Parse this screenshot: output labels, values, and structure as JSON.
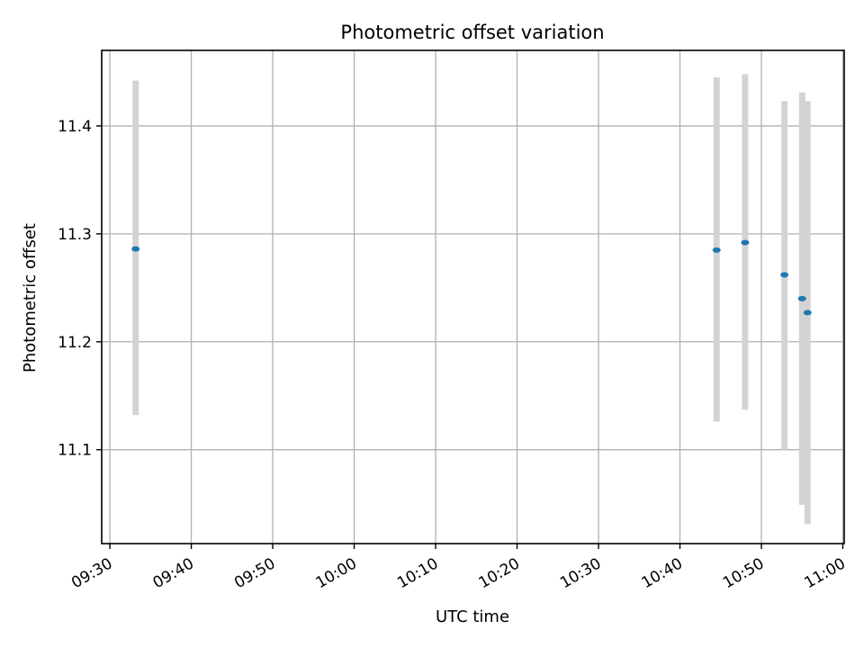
{
  "chart_data": {
    "type": "scatter",
    "title": "Photometric offset variation",
    "xlabel": "UTC time",
    "ylabel": "Photometric offset",
    "x_ticks": [
      "09:30",
      "09:40",
      "09:50",
      "10:00",
      "10:10",
      "10:20",
      "10:30",
      "10:40",
      "10:50",
      "11:00"
    ],
    "y_ticks": [
      "11.1",
      "11.2",
      "11.3",
      "11.4"
    ],
    "y_tick_values": [
      11.1,
      11.2,
      11.3,
      11.4
    ],
    "xlim": [
      "09:29:00",
      "11:00:10"
    ],
    "ylim": [
      11.013,
      11.47
    ],
    "grid": true,
    "marker_color": "#1f77b4",
    "errorbar_color": "#d3d3d3",
    "points": [
      {
        "time": "09:33:10",
        "value": 11.286,
        "err_low": 11.132,
        "err_high": 11.442
      },
      {
        "time": "10:44:30",
        "value": 11.285,
        "err_low": 11.126,
        "err_high": 11.445
      },
      {
        "time": "10:48:00",
        "value": 11.292,
        "err_low": 11.137,
        "err_high": 11.448
      },
      {
        "time": "10:52:50",
        "value": 11.262,
        "err_low": 11.1,
        "err_high": 11.423
      },
      {
        "time": "10:55:00",
        "value": 11.24,
        "err_low": 11.049,
        "err_high": 11.431
      },
      {
        "time": "10:55:40",
        "value": 11.227,
        "err_low": 11.031,
        "err_high": 11.423
      }
    ]
  }
}
